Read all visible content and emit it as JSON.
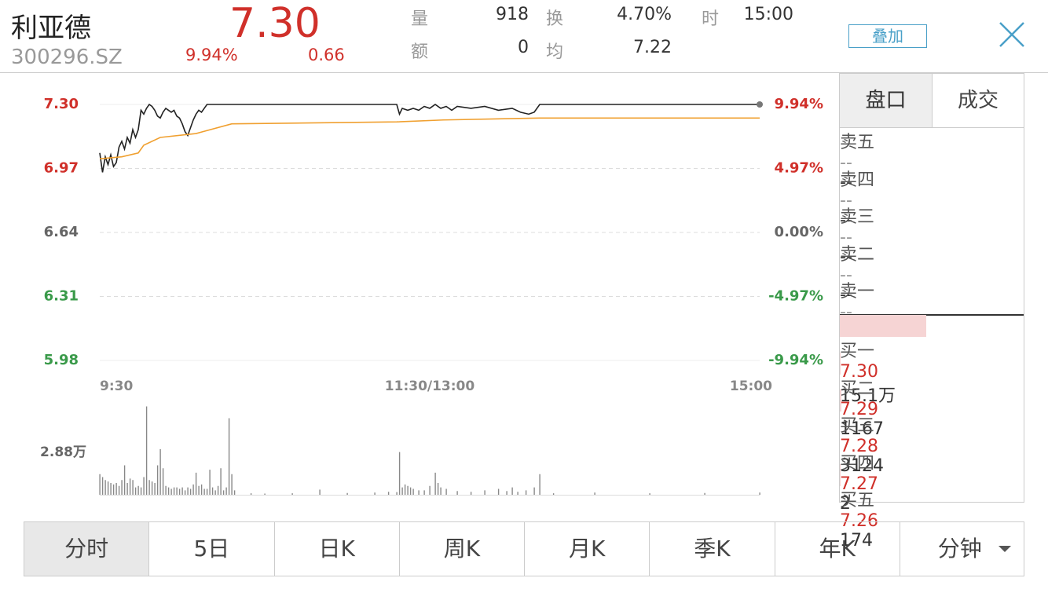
{
  "header": {
    "name": "利亚德",
    "code": "300296.SZ",
    "price": "7.30",
    "change_pct": "9.94%",
    "change": "0.66",
    "stats": [
      {
        "label": "量",
        "value": "918"
      },
      {
        "label": "额",
        "value": "0"
      },
      {
        "label": "换",
        "value": "4.70%"
      },
      {
        "label": "均",
        "value": "7.22"
      },
      {
        "label": "时",
        "value": "15:00"
      }
    ],
    "overlay_button": "叠加"
  },
  "chart_data": [
    {
      "type": "line",
      "xlim": [
        0,
        240
      ],
      "xticks": [
        {
          "value": 0,
          "label": "9:30"
        },
        {
          "value": 120,
          "label": "11:30/13:00"
        },
        {
          "value": 240,
          "label": "15:00"
        }
      ],
      "ylim": [
        5.98,
        7.3
      ],
      "yticks": [
        {
          "value": 7.3,
          "label": "7.30"
        },
        6.97,
        6.64,
        6.31,
        5.98
      ],
      "y2lim": [
        -9.94,
        9.94
      ],
      "y2ticks": [
        {
          "value": 9.94,
          "label": "9.94%"
        },
        {
          "value": 4.97,
          "label": "4.97%"
        },
        {
          "value": 0,
          "label": "0.00%"
        },
        {
          "value": -4.97,
          "label": "-4.97%"
        },
        {
          "value": -9.94,
          "label": "-9.94%"
        }
      ],
      "series": [
        {
          "color": "#222222",
          "x": [
            0,
            1,
            2,
            3,
            4,
            5,
            6,
            7,
            8,
            9,
            10,
            11,
            12,
            13,
            14,
            15,
            16,
            17,
            18,
            19,
            20,
            21,
            22,
            23,
            24,
            25,
            26,
            27,
            28,
            29,
            30,
            31,
            32,
            33,
            34,
            35,
            36,
            37,
            38,
            39,
            40,
            108,
            109,
            110,
            112,
            114,
            116,
            118,
            120,
            122,
            124,
            126,
            128,
            130,
            135,
            140,
            145,
            150,
            153,
            156,
            158,
            160,
            240
          ],
          "values": [
            7.05,
            6.95,
            7.03,
            6.99,
            7.04,
            6.98,
            7.0,
            7.08,
            7.11,
            7.07,
            7.13,
            7.1,
            7.17,
            7.13,
            7.17,
            7.27,
            7.25,
            7.28,
            7.3,
            7.29,
            7.27,
            7.24,
            7.23,
            7.26,
            7.28,
            7.27,
            7.26,
            7.27,
            7.24,
            7.23,
            7.2,
            7.16,
            7.14,
            7.18,
            7.22,
            7.25,
            7.27,
            7.26,
            7.28,
            7.3,
            7.3,
            7.3,
            7.25,
            7.28,
            7.27,
            7.28,
            7.27,
            7.29,
            7.28,
            7.3,
            7.28,
            7.29,
            7.27,
            7.29,
            7.28,
            7.29,
            7.27,
            7.28,
            7.26,
            7.25,
            7.26,
            7.3,
            7.3
          ]
        },
        {
          "color": "#f0a030",
          "x": [
            0,
            8,
            14,
            16,
            22,
            35,
            48,
            108,
            125,
            160,
            240
          ],
          "values": [
            7.02,
            7.03,
            7.05,
            7.09,
            7.13,
            7.15,
            7.2,
            7.21,
            7.22,
            7.23,
            7.23
          ]
        }
      ]
    },
    {
      "type": "bar",
      "color": "#888888",
      "xlim": [
        0,
        240
      ],
      "ylim": [
        0,
        57600
      ],
      "yticks": [
        {
          "value": 28800,
          "label": "2.88万"
        }
      ],
      "x": [
        0,
        1,
        2,
        3,
        4,
        5,
        6,
        7,
        8,
        9,
        10,
        11,
        12,
        13,
        14,
        15,
        16,
        17,
        18,
        19,
        20,
        21,
        22,
        23,
        24,
        25,
        26,
        27,
        28,
        29,
        30,
        31,
        32,
        33,
        34,
        35,
        36,
        37,
        38,
        39,
        40,
        41,
        42,
        43,
        44,
        45,
        46,
        47,
        48,
        49,
        55,
        60,
        70,
        80,
        90,
        100,
        105,
        108,
        109,
        110,
        111,
        112,
        113,
        114,
        116,
        118,
        120,
        122,
        123,
        124,
        126,
        130,
        135,
        140,
        145,
        148,
        150,
        152,
        155,
        158,
        160,
        165,
        180,
        200,
        220,
        240
      ],
      "values": [
        14000,
        12000,
        10000,
        9000,
        8000,
        7000,
        8000,
        6000,
        10000,
        20000,
        8000,
        11000,
        10000,
        5000,
        6000,
        5000,
        12000,
        60000,
        10000,
        9000,
        8000,
        20000,
        31000,
        18000,
        6000,
        5000,
        4000,
        5000,
        5000,
        4000,
        5000,
        3000,
        5000,
        4000,
        7000,
        15000,
        6000,
        7000,
        4000,
        4000,
        17000,
        5000,
        3000,
        6000,
        18000,
        3000,
        5000,
        52000,
        14000,
        3000,
        1000,
        800,
        1000,
        3500,
        1200,
        1500,
        2000,
        1800,
        29000,
        5000,
        7000,
        6000,
        5000,
        4000,
        3000,
        3000,
        6000,
        15000,
        8000,
        5000,
        4000,
        2500,
        2000,
        3000,
        4000,
        2500,
        5000,
        2000,
        3000,
        5000,
        14000,
        1000,
        1500,
        1000,
        1200,
        1500
      ]
    }
  ],
  "order_book": {
    "tabs": [
      "盘口",
      "成交"
    ],
    "asks": [
      {
        "label": "卖五",
        "price": "--",
        "volume": "--"
      },
      {
        "label": "卖四",
        "price": "--",
        "volume": "--"
      },
      {
        "label": "卖三",
        "price": "--",
        "volume": "--"
      },
      {
        "label": "卖二",
        "price": "--",
        "volume": "--"
      },
      {
        "label": "卖一",
        "price": "--",
        "volume": "--"
      }
    ],
    "bids": [
      {
        "label": "买一",
        "price": "7.30",
        "volume": 151000,
        "volume_label": "15.1万"
      },
      {
        "label": "买二",
        "price": "7.29",
        "volume": 1167
      },
      {
        "label": "买三",
        "price": "7.28",
        "volume": 3124
      },
      {
        "label": "买四",
        "price": "7.27",
        "volume": 2
      },
      {
        "label": "买五",
        "price": "7.26",
        "volume": 174
      }
    ]
  },
  "period_tabs": [
    "分时",
    "5日",
    "日K",
    "周K",
    "月K",
    "季K",
    "年K",
    "分钟"
  ]
}
